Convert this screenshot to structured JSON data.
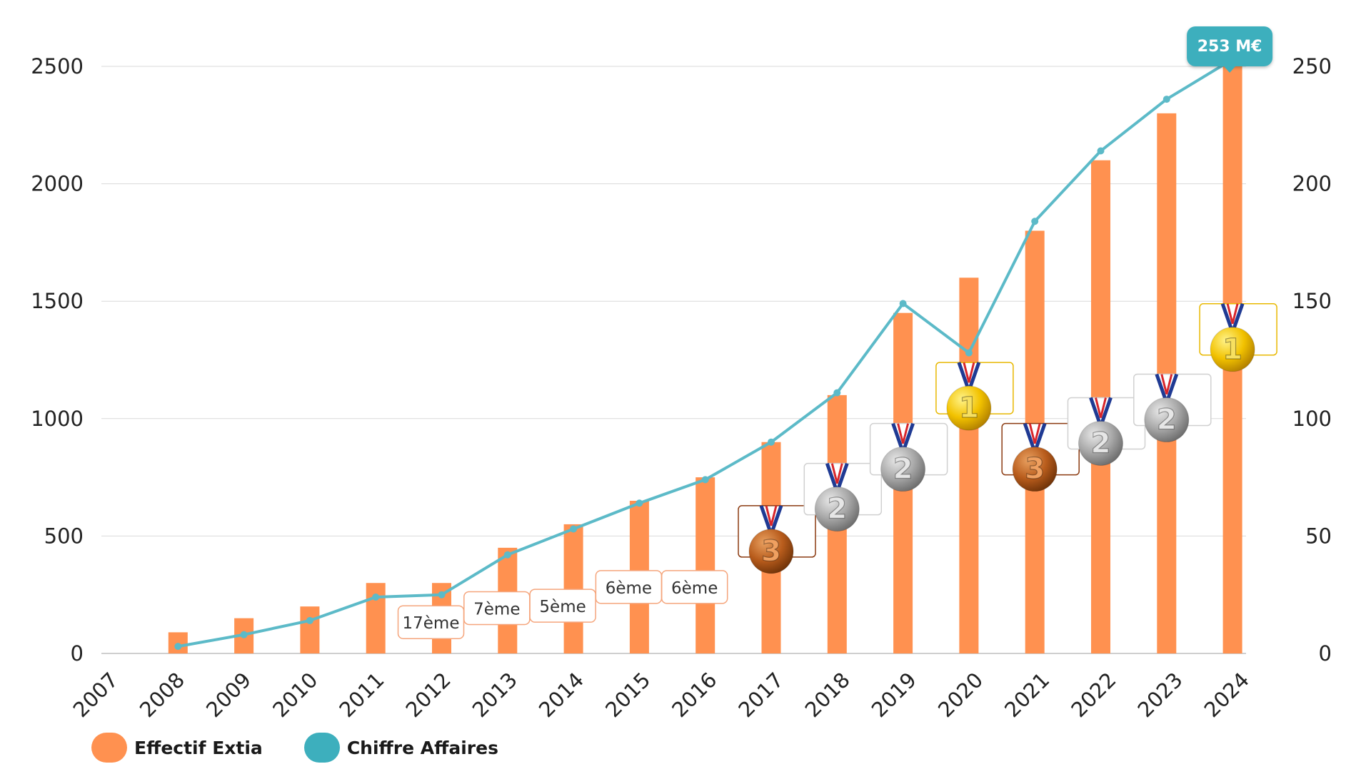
{
  "chart_data": {
    "type": "bar+line",
    "categories": [
      "2007",
      "2008",
      "2009",
      "2010",
      "2011",
      "2012",
      "2013",
      "2014",
      "2015",
      "2016",
      "2017",
      "2018",
      "2019",
      "2020",
      "2021",
      "2022",
      "2023",
      "2024"
    ],
    "series": [
      {
        "name": "Effectif Extia",
        "type": "bar",
        "axis": "left",
        "color": "#FF9150",
        "values": [
          0,
          90,
          150,
          200,
          300,
          300,
          450,
          550,
          650,
          750,
          900,
          1100,
          1450,
          1600,
          1800,
          2100,
          2300,
          2530
        ]
      },
      {
        "name": "Chiffre Affaires",
        "type": "line",
        "axis": "right",
        "color": "#5CBAC8",
        "values": [
          null,
          3,
          8,
          14,
          24,
          25,
          42,
          53,
          64,
          74,
          90,
          111,
          149,
          128,
          184,
          214,
          236,
          253
        ]
      }
    ],
    "y_left": {
      "ticks": [
        "0",
        "500",
        "1000",
        "1500",
        "2000",
        "2500"
      ],
      "ylim": [
        0,
        2500
      ]
    },
    "y_right": {
      "ticks": [
        "0",
        "50",
        "100",
        "150",
        "200",
        "250"
      ],
      "ylim": [
        0,
        250
      ]
    },
    "callout": {
      "text": "253 M€",
      "year": "2024",
      "color": "#3DAFBD"
    },
    "rank_labels": [
      {
        "year": "2012",
        "text": "17ème",
        "y": 130
      },
      {
        "year": "2013",
        "text": "7ème",
        "y": 190
      },
      {
        "year": "2014",
        "text": "5ème",
        "y": 200
      },
      {
        "year": "2015",
        "text": "6ème",
        "y": 280
      },
      {
        "year": "2016",
        "text": "6ème",
        "y": 280
      }
    ],
    "medals": [
      {
        "year": "2017",
        "rank": "3",
        "level": 380
      },
      {
        "year": "2018",
        "rank": "2",
        "level": 560
      },
      {
        "year": "2019",
        "rank": "2",
        "level": 730
      },
      {
        "year": "2020",
        "rank": "1",
        "level": 990
      },
      {
        "year": "2021",
        "rank": "3",
        "level": 730
      },
      {
        "year": "2022",
        "rank": "2",
        "level": 840
      },
      {
        "year": "2023",
        "rank": "2",
        "level": 940
      },
      {
        "year": "2024",
        "rank": "1",
        "level": 1240
      }
    ],
    "legend": [
      {
        "label": "Effectif Extia",
        "color": "#FF9150"
      },
      {
        "label": "Chiffre Affaires",
        "color": "#3DAFBD"
      }
    ],
    "grid": true
  }
}
